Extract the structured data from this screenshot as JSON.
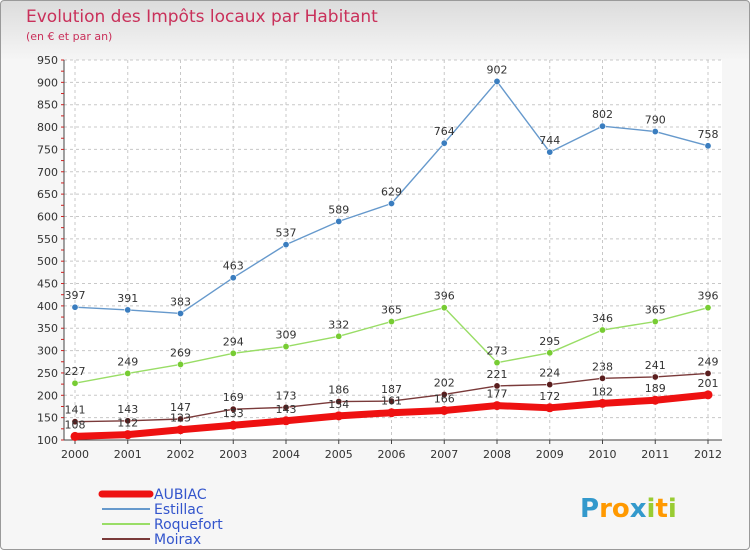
{
  "chart_data": {
    "type": "line",
    "title": "Evolution des Impôts locaux par Habitant",
    "subtitle": "(en € et par an)",
    "x": [
      "2000",
      "2001",
      "2002",
      "2003",
      "2004",
      "2005",
      "2006",
      "2007",
      "2008",
      "2009",
      "2010",
      "2011",
      "2012"
    ],
    "ylim": [
      100,
      950
    ],
    "yticks": [
      100,
      150,
      200,
      250,
      300,
      350,
      400,
      450,
      500,
      550,
      600,
      650,
      700,
      750,
      800,
      850,
      900,
      950
    ],
    "grid": true,
    "legend_position": "bottom-left",
    "series": [
      {
        "name": "Estillac",
        "color": "#6699cc",
        "marker": "#3a7dbf",
        "width": 1.4,
        "values": [
          397,
          391,
          383,
          463,
          537,
          589,
          629,
          764,
          902,
          744,
          802,
          790,
          758
        ]
      },
      {
        "name": "Roquefort",
        "color": "#99dd66",
        "marker": "#77cc33",
        "width": 1.4,
        "values": [
          227,
          249,
          269,
          294,
          309,
          332,
          365,
          396,
          273,
          295,
          346,
          365,
          396
        ]
      },
      {
        "name": "Moirax",
        "color": "#7a3a3a",
        "marker": "#5a1e1e",
        "width": 1.4,
        "values": [
          141,
          143,
          147,
          169,
          173,
          186,
          187,
          202,
          221,
          224,
          238,
          241,
          249
        ]
      },
      {
        "name": "AUBIAC",
        "color": "#ee1111",
        "marker": "#ee1111",
        "width": 7,
        "values": [
          108,
          112,
          123,
          133,
          143,
          154,
          161,
          166,
          177,
          172,
          182,
          189,
          201
        ]
      }
    ]
  },
  "legend": [
    {
      "label": "AUBIAC",
      "color": "#ee1111",
      "label_color": "#3355cc",
      "thick": true
    },
    {
      "label": "Estillac",
      "color": "#6699cc",
      "label_color": "#3355cc",
      "thick": false
    },
    {
      "label": "Roquefort",
      "color": "#99dd66",
      "label_color": "#3355cc",
      "thick": false
    },
    {
      "label": "Moirax",
      "color": "#7a3a3a",
      "label_color": "#3355cc",
      "thick": false
    }
  ],
  "logo": {
    "letters": [
      "P",
      "r",
      "o",
      "x",
      "i",
      "t",
      "i"
    ],
    "colors": [
      "#3399cc",
      "#ff9900",
      "#ff9900",
      "#3399cc",
      "#99cc33",
      "#ff9900",
      "#99cc33"
    ]
  }
}
